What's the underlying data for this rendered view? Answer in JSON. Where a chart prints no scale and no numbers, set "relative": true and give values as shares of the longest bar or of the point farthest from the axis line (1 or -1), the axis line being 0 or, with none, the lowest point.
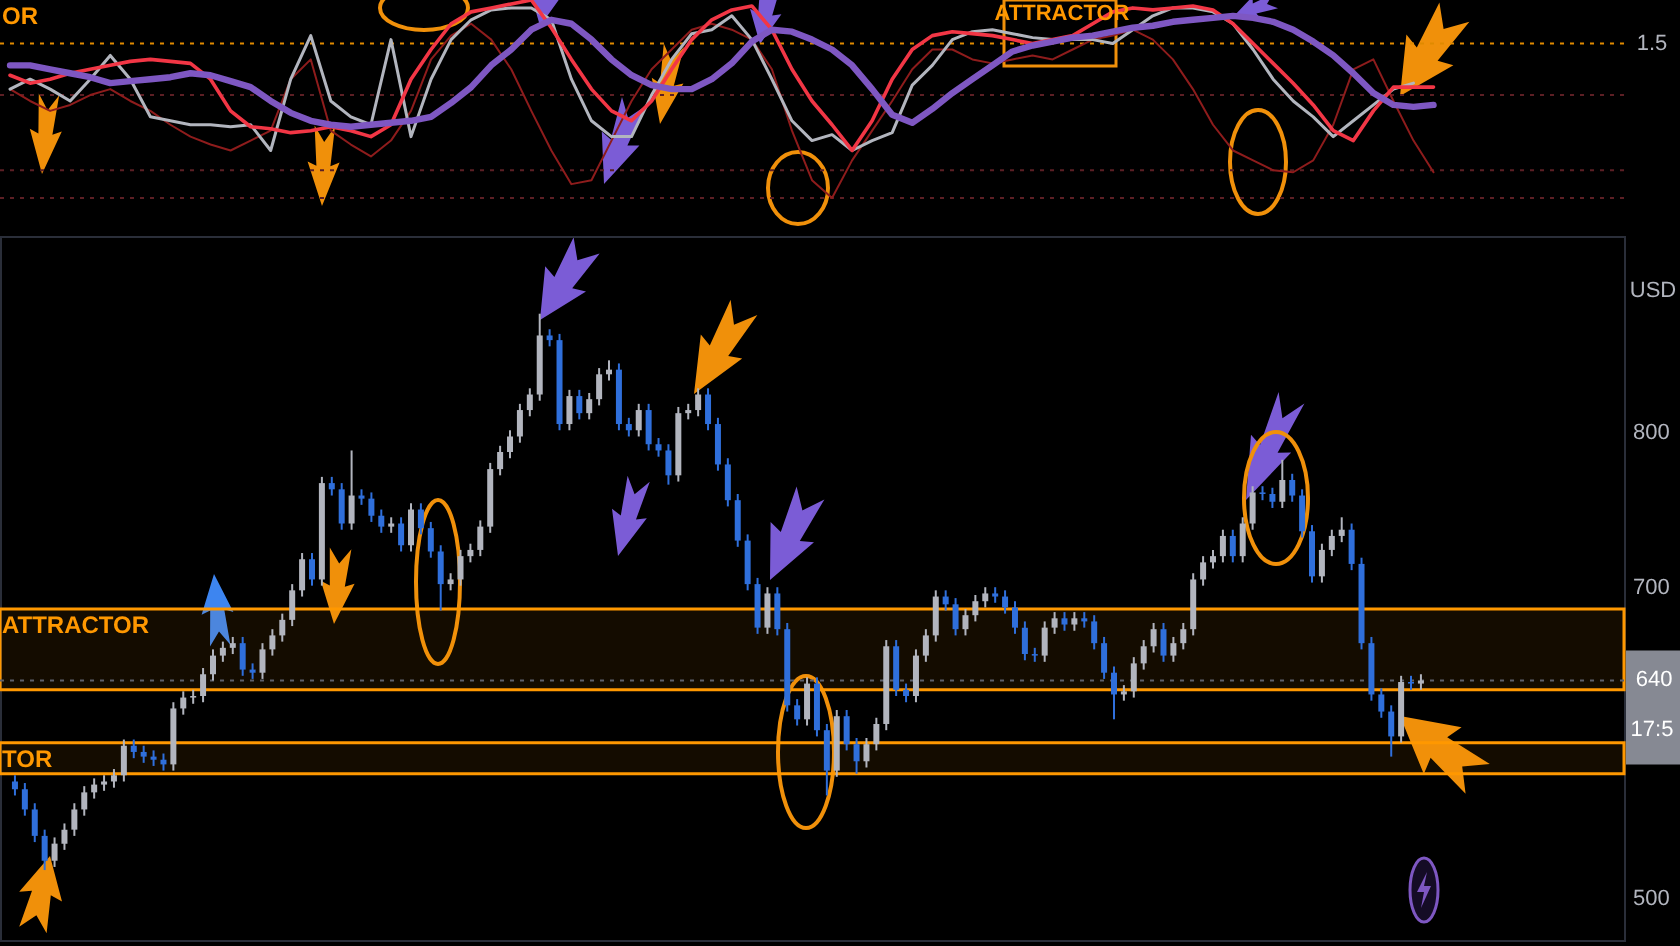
{
  "chart_data": [
    {
      "type": "line",
      "relative": true,
      "categories": [
        null,
        null,
        null,
        null,
        null,
        null,
        null,
        null,
        null,
        null,
        null,
        null,
        null,
        null,
        null,
        null,
        null,
        null,
        null,
        null,
        null,
        null,
        null,
        null,
        null,
        null,
        null,
        null,
        null,
        null,
        null,
        null,
        null,
        null,
        null,
        null,
        null,
        null,
        null,
        null,
        null,
        null,
        null,
        null,
        null,
        null,
        null,
        null,
        null,
        null,
        null,
        null,
        null,
        null,
        null,
        null,
        null,
        null,
        null,
        null,
        null,
        null,
        null,
        null,
        null,
        null,
        null,
        null,
        null,
        null,
        null,
        null,
        null,
        null,
        null,
        null,
        null,
        null,
        null,
        null,
        null
      ],
      "series": [
        {
          "color": "#8e1c1c",
          "values": [
            0.55,
            0.49,
            0.44,
            0.47,
            0.52,
            0.55,
            0.49,
            0.44,
            0.37,
            0.31,
            0.27,
            0.24,
            0.29,
            0.34,
            0.6,
            0.7,
            0.34,
            0.27,
            0.21,
            0.29,
            0.44,
            0.7,
            0.82,
            0.88,
            0.8,
            0.65,
            0.44,
            0.24,
            0.07,
            0.09,
            0.29,
            0.49,
            0.65,
            0.75,
            0.85,
            0.88,
            0.85,
            0.8,
            0.65,
            0.34,
            0.09,
            0,
            0.19,
            0.34,
            0.49,
            0.65,
            0.75,
            0.75,
            0.7,
            0.68,
            0.7,
            0.72,
            0.7,
            0.75,
            0.8,
            0.82,
            0.85,
            0.8,
            0.7,
            0.55,
            0.37,
            0.24,
            0.19,
            0.14,
            0.13,
            0.19,
            0.37,
            0.65,
            0.7,
            0.49,
            0.29,
            0.13,
            null,
            null,
            null,
            null,
            null,
            null,
            null,
            null,
            null
          ]
        },
        {
          "color": "#b2b5be",
          "values": [
            0.55,
            0.6,
            0.55,
            0.49,
            0.6,
            0.72,
            0.6,
            0.41,
            0.39,
            0.37,
            0.37,
            0.36,
            0.37,
            0.24,
            0.6,
            0.82,
            0.49,
            0.41,
            0.37,
            0.8,
            0.31,
            0.6,
            0.8,
            0.9,
            0.95,
            0.96,
            0.96,
            0.9,
            0.6,
            0.39,
            0.31,
            0.31,
            0.52,
            0.7,
            0.83,
            0.85,
            0.92,
            0.8,
            0.6,
            0.39,
            0.29,
            0.32,
            0.24,
            0.29,
            0.33,
            0.57,
            0.67,
            0.8,
            0.84,
            0.85,
            0.83,
            0.81,
            0.8,
            0.8,
            0.8,
            0.78,
            0.85,
            0.92,
            0.96,
            0.96,
            0.94,
            0.88,
            0.75,
            0.6,
            0.49,
            0.41,
            0.31,
            0.39,
            0.47,
            0.55,
            0.58,
            null,
            null,
            null,
            null,
            null,
            null,
            null,
            null,
            null,
            null
          ]
        },
        {
          "color": "#f23645",
          "values": [
            0.62,
            0.58,
            0.6,
            0.63,
            0.65,
            0.67,
            0.69,
            0.7,
            0.69,
            0.68,
            0.6,
            0.44,
            0.36,
            0.35,
            0.33,
            0.34,
            0.36,
            0.34,
            0.31,
            0.37,
            0.6,
            0.75,
            0.88,
            0.94,
            0.96,
            0.98,
            1,
            0.86,
            0.7,
            0.55,
            0.44,
            0.39,
            0.49,
            0.65,
            0.8,
            0.9,
            0.95,
            0.97,
            0.85,
            0.65,
            0.49,
            0.37,
            0.24,
            0.39,
            0.6,
            0.75,
            0.82,
            0.84,
            0.83,
            0.82,
            0.8,
            0.78,
            0.8,
            0.82,
            0.88,
            0.94,
            0.96,
            0.95,
            0.96,
            0.97,
            0.95,
            0.88,
            0.78,
            0.68,
            0.58,
            0.47,
            0.34,
            0.29,
            0.44,
            0.56,
            0.56,
            0.56,
            null,
            null,
            null,
            null,
            null,
            null,
            null,
            null,
            null
          ]
        },
        {
          "color": "#7e57c2",
          "values": [
            0.67,
            0.67,
            0.65,
            0.63,
            0.61,
            0.58,
            0.59,
            0.6,
            0.61,
            0.63,
            0.62,
            0.59,
            0.56,
            0.49,
            0.43,
            0.39,
            0.37,
            0.36,
            0.37,
            0.38,
            0.39,
            0.41,
            0.48,
            0.56,
            0.67,
            0.75,
            0.85,
            0.9,
            0.88,
            0.8,
            0.7,
            0.62,
            0.57,
            0.55,
            0.55,
            0.6,
            0.68,
            0.79,
            0.85,
            0.84,
            0.8,
            0.75,
            0.67,
            0.55,
            0.42,
            0.38,
            0.45,
            0.53,
            0.6,
            0.67,
            0.74,
            0.77,
            0.79,
            0.81,
            0.82,
            0.84,
            0.86,
            0.87,
            0.89,
            0.9,
            0.91,
            0.92,
            0.91,
            0.89,
            0.85,
            0.79,
            0.72,
            0.63,
            0.53,
            0.47,
            0.46,
            0.47,
            null,
            null,
            null,
            null,
            null,
            null,
            null,
            null,
            null
          ]
        }
      ],
      "ref_lines": [
        {
          "axis": "y",
          "value": 0.78,
          "color": "#e08a00",
          "line_style": "dotted"
        },
        {
          "axis": "y",
          "value": 0.52,
          "color": "#5c1f24",
          "line_style": "dotted"
        },
        {
          "axis": "y",
          "value": 0.14,
          "color": "#5c1f24",
          "line_style": "dotted"
        },
        {
          "axis": "y",
          "value": 0,
          "color": "#5c1f24",
          "line_style": "dotted"
        }
      ],
      "annotations": [
        "OR",
        "ATTRACTOR",
        "1.5"
      ]
    },
    {
      "type": "candlestick",
      "ylabel": "USD",
      "tick_labels": "y",
      "ylim": [
        473,
        926
      ],
      "yticks": [
        500,
        700,
        800
      ],
      "categories": [
        null,
        null,
        null,
        null,
        null,
        null,
        null,
        null,
        null,
        null,
        null,
        null,
        null,
        null,
        null,
        null,
        null,
        null,
        null,
        null,
        null,
        null,
        null,
        null,
        null,
        null,
        null,
        null,
        null,
        null,
        null,
        null,
        null,
        null,
        null,
        null,
        null,
        null,
        null,
        null,
        null,
        null,
        null,
        null,
        null,
        null,
        null,
        null,
        null,
        null,
        null,
        null,
        null,
        null,
        null,
        null,
        null,
        null,
        null,
        null,
        null,
        null,
        null,
        null,
        null,
        null,
        null,
        null,
        null,
        null,
        null,
        null,
        null,
        null,
        null,
        null,
        null,
        null,
        null,
        null,
        null,
        null,
        null,
        null,
        null,
        null,
        null,
        null,
        null,
        null,
        null,
        null,
        null,
        null,
        null,
        null,
        null,
        null,
        null,
        null,
        null,
        null,
        null,
        null,
        null,
        null,
        null,
        null,
        null,
        null,
        null,
        null,
        null,
        null,
        null,
        null,
        null,
        null,
        null,
        null,
        null,
        null,
        null,
        null,
        null,
        null,
        null,
        null,
        null,
        null,
        null,
        null,
        null,
        null,
        null,
        null,
        null,
        null,
        null,
        null,
        null,
        null,
        null,
        null,
        null,
        null,
        null,
        null,
        null,
        null,
        null,
        null,
        null,
        null,
        null,
        null,
        null,
        null,
        null,
        null,
        null,
        null
      ],
      "ohlc": [
        [
          575,
          579,
          566,
          570
        ],
        [
          570,
          574,
          553,
          557
        ],
        [
          557,
          561,
          536,
          540
        ],
        [
          540,
          544,
          518,
          524
        ],
        [
          524,
          539,
          520,
          535
        ],
        [
          535,
          548,
          531,
          544
        ],
        [
          544,
          561,
          540,
          557
        ],
        [
          557,
          572,
          553,
          568
        ],
        [
          568,
          577,
          564,
          573
        ],
        [
          573,
          579,
          569,
          575
        ],
        [
          575,
          583,
          571,
          579
        ],
        [
          579,
          602,
          575,
          598
        ],
        [
          598,
          602,
          590,
          594
        ],
        [
          594,
          598,
          587,
          591
        ],
        [
          591,
          595,
          585,
          589
        ],
        [
          589,
          593,
          582,
          586
        ],
        [
          586,
          626,
          582,
          622
        ],
        [
          622,
          633,
          618,
          629
        ],
        [
          629,
          634,
          625,
          630
        ],
        [
          630,
          648,
          626,
          644
        ],
        [
          644,
          660,
          640,
          656
        ],
        [
          656,
          665,
          652,
          661
        ],
        [
          661,
          668,
          657,
          664
        ],
        [
          664,
          668,
          643,
          647
        ],
        [
          647,
          651,
          641,
          645
        ],
        [
          645,
          664,
          641,
          660
        ],
        [
          660,
          673,
          656,
          669
        ],
        [
          669,
          683,
          665,
          679
        ],
        [
          679,
          702,
          675,
          698
        ],
        [
          698,
          722,
          694,
          718
        ],
        [
          718,
          722,
          701,
          705
        ],
        [
          705,
          771,
          701,
          767
        ],
        [
          767,
          771,
          759,
          763
        ],
        [
          763,
          767,
          737,
          741
        ],
        [
          741,
          788,
          737,
          759
        ],
        [
          759,
          763,
          753,
          757
        ],
        [
          757,
          761,
          742,
          746
        ],
        [
          746,
          750,
          735,
          739
        ],
        [
          739,
          745,
          735,
          741
        ],
        [
          741,
          745,
          723,
          727
        ],
        [
          727,
          754,
          723,
          750
        ],
        [
          750,
          754,
          734,
          738
        ],
        [
          738,
          742,
          719,
          723
        ],
        [
          723,
          727,
          685,
          702
        ],
        [
          702,
          709,
          698,
          705
        ],
        [
          705,
          724,
          701,
          720
        ],
        [
          720,
          728,
          716,
          724
        ],
        [
          724,
          743,
          720,
          739
        ],
        [
          739,
          780,
          735,
          776
        ],
        [
          776,
          791,
          772,
          787
        ],
        [
          787,
          801,
          783,
          797
        ],
        [
          797,
          818,
          793,
          814
        ],
        [
          814,
          828,
          810,
          824
        ],
        [
          824,
          876,
          820,
          862
        ],
        [
          862,
          866,
          855,
          859
        ],
        [
          859,
          863,
          801,
          805
        ],
        [
          805,
          827,
          801,
          823
        ],
        [
          823,
          827,
          808,
          812
        ],
        [
          812,
          825,
          808,
          821
        ],
        [
          821,
          841,
          817,
          837
        ],
        [
          837,
          846,
          833,
          840
        ],
        [
          840,
          844,
          801,
          805
        ],
        [
          805,
          809,
          797,
          801
        ],
        [
          801,
          818,
          797,
          814
        ],
        [
          814,
          818,
          788,
          792
        ],
        [
          792,
          796,
          784,
          788
        ],
        [
          788,
          792,
          766,
          772
        ],
        [
          772,
          816,
          768,
          812
        ],
        [
          812,
          818,
          808,
          814
        ],
        [
          814,
          828,
          810,
          824
        ],
        [
          824,
          828,
          801,
          805
        ],
        [
          805,
          809,
          775,
          779
        ],
        [
          779,
          783,
          752,
          756
        ],
        [
          756,
          760,
          726,
          730
        ],
        [
          730,
          734,
          698,
          702
        ],
        [
          702,
          706,
          670,
          674
        ],
        [
          674,
          700,
          670,
          696
        ],
        [
          696,
          700,
          669,
          673
        ],
        [
          673,
          677,
          620,
          624
        ],
        [
          624,
          628,
          611,
          615
        ],
        [
          615,
          642,
          611,
          638
        ],
        [
          638,
          642,
          604,
          608
        ],
        [
          608,
          612,
          566,
          582
        ],
        [
          582,
          621,
          578,
          617
        ],
        [
          617,
          621,
          595,
          599
        ],
        [
          599,
          603,
          580,
          588
        ],
        [
          588,
          603,
          584,
          599
        ],
        [
          599,
          616,
          595,
          612
        ],
        [
          612,
          666,
          608,
          662
        ],
        [
          662,
          666,
          630,
          634
        ],
        [
          634,
          638,
          626,
          630
        ],
        [
          630,
          660,
          626,
          656
        ],
        [
          656,
          673,
          652,
          669
        ],
        [
          669,
          698,
          665,
          694
        ],
        [
          694,
          698,
          685,
          689
        ],
        [
          689,
          693,
          669,
          673
        ],
        [
          673,
          686,
          669,
          682
        ],
        [
          682,
          695,
          678,
          691
        ],
        [
          691,
          700,
          687,
          696
        ],
        [
          696,
          700,
          690,
          694
        ],
        [
          694,
          698,
          683,
          687
        ],
        [
          687,
          691,
          670,
          674
        ],
        [
          674,
          678,
          653,
          657
        ],
        [
          657,
          661,
          652,
          656
        ],
        [
          656,
          678,
          652,
          674
        ],
        [
          674,
          684,
          670,
          680
        ],
        [
          680,
          684,
          672,
          676
        ],
        [
          676,
          684,
          672,
          680
        ],
        [
          680,
          684,
          674,
          678
        ],
        [
          678,
          682,
          660,
          664
        ],
        [
          664,
          668,
          641,
          645
        ],
        [
          645,
          649,
          615,
          631
        ],
        [
          631,
          637,
          627,
          633
        ],
        [
          633,
          655,
          629,
          651
        ],
        [
          651,
          666,
          647,
          662
        ],
        [
          662,
          677,
          658,
          673
        ],
        [
          673,
          677,
          652,
          656
        ],
        [
          656,
          668,
          652,
          664
        ],
        [
          664,
          677,
          660,
          673
        ],
        [
          673,
          709,
          669,
          705
        ],
        [
          705,
          720,
          701,
          716
        ],
        [
          716,
          724,
          712,
          720
        ],
        [
          720,
          737,
          716,
          733
        ],
        [
          733,
          737,
          716,
          720
        ],
        [
          720,
          745,
          716,
          741
        ],
        [
          741,
          765,
          737,
          761
        ],
        [
          761,
          765,
          756,
          760
        ],
        [
          760,
          764,
          751,
          755
        ],
        [
          755,
          782,
          751,
          769
        ],
        [
          769,
          773,
          755,
          759
        ],
        [
          759,
          763,
          732,
          736
        ],
        [
          736,
          740,
          703,
          707
        ],
        [
          707,
          728,
          703,
          724
        ],
        [
          724,
          737,
          720,
          733
        ],
        [
          733,
          745,
          729,
          737
        ],
        [
          737,
          741,
          711,
          715
        ],
        [
          715,
          719,
          660,
          664
        ],
        [
          664,
          668,
          627,
          631
        ],
        [
          631,
          635,
          616,
          620
        ],
        [
          620,
          624,
          591,
          604
        ],
        [
          604,
          643,
          600,
          639
        ],
        [
          639,
          643,
          634,
          638
        ],
        [
          638,
          644,
          634,
          640
        ],
        null,
        null,
        null,
        null,
        null,
        null,
        null,
        null,
        null,
        null,
        null,
        null,
        null,
        null,
        null,
        null,
        null,
        null,
        null
      ],
      "colors": [
        "#2f6fdb",
        "#2f6fdb",
        "#2f6fdb",
        "#2f6fdb",
        "#b2b5be",
        "#b2b5be",
        "#b2b5be",
        "#b2b5be",
        "#b2b5be",
        "#b2b5be",
        "#b2b5be",
        "#b2b5be",
        "#2f6fdb",
        "#2f6fdb",
        "#2f6fdb",
        "#2f6fdb",
        "#b2b5be",
        "#b2b5be",
        "#b2b5be",
        "#b2b5be",
        "#b2b5be",
        "#b2b5be",
        "#b2b5be",
        "#2f6fdb",
        "#2f6fdb",
        "#b2b5be",
        "#b2b5be",
        "#b2b5be",
        "#b2b5be",
        "#b2b5be",
        "#2f6fdb",
        "#b2b5be",
        "#2f6fdb",
        "#2f6fdb",
        "#b2b5be",
        "#2f6fdb",
        "#2f6fdb",
        "#2f6fdb",
        "#b2b5be",
        "#2f6fdb",
        "#b2b5be",
        "#2f6fdb",
        "#2f6fdb",
        "#2f6fdb",
        "#b2b5be",
        "#b2b5be",
        "#b2b5be",
        "#b2b5be",
        "#b2b5be",
        "#b2b5be",
        "#b2b5be",
        "#b2b5be",
        "#b2b5be",
        "#b2b5be",
        "#2f6fdb",
        "#2f6fdb",
        "#b2b5be",
        "#2f6fdb",
        "#b2b5be",
        "#b2b5be",
        "#b2b5be",
        "#2f6fdb",
        "#2f6fdb",
        "#b2b5be",
        "#2f6fdb",
        "#2f6fdb",
        "#2f6fdb",
        "#b2b5be",
        "#b2b5be",
        "#b2b5be",
        "#2f6fdb",
        "#2f6fdb",
        "#2f6fdb",
        "#2f6fdb",
        "#2f6fdb",
        "#2f6fdb",
        "#b2b5be",
        "#2f6fdb",
        "#2f6fdb",
        "#2f6fdb",
        "#b2b5be",
        "#2f6fdb",
        "#2f6fdb",
        "#b2b5be",
        "#2f6fdb",
        "#2f6fdb",
        "#b2b5be",
        "#b2b5be",
        "#b2b5be",
        "#2f6fdb",
        "#2f6fdb",
        "#b2b5be",
        "#b2b5be",
        "#b2b5be",
        "#2f6fdb",
        "#2f6fdb",
        "#b2b5be",
        "#b2b5be",
        "#b2b5be",
        "#2f6fdb",
        "#2f6fdb",
        "#2f6fdb",
        "#2f6fdb",
        "#2f6fdb",
        "#b2b5be",
        "#b2b5be",
        "#2f6fdb",
        "#b2b5be",
        "#2f6fdb",
        "#2f6fdb",
        "#2f6fdb",
        "#2f6fdb",
        "#b2b5be",
        "#b2b5be",
        "#b2b5be",
        "#b2b5be",
        "#2f6fdb",
        "#b2b5be",
        "#b2b5be",
        "#b2b5be",
        "#b2b5be",
        "#b2b5be",
        "#b2b5be",
        "#2f6fdb",
        "#b2b5be",
        "#b2b5be",
        "#2f6fdb",
        "#2f6fdb",
        "#b2b5be",
        "#2f6fdb",
        "#2f6fdb",
        "#2f6fdb",
        "#b2b5be",
        "#b2b5be",
        "#b2b5be",
        "#2f6fdb",
        "#2f6fdb",
        "#2f6fdb",
        "#2f6fdb",
        "#2f6fdb",
        "#b2b5be",
        "#2f6fdb",
        "#b2b5be",
        null,
        null,
        null,
        null,
        null,
        null,
        null,
        null,
        null,
        null,
        null,
        null,
        null,
        null,
        null,
        null,
        null,
        null,
        null
      ],
      "bands": [
        {
          "axis": "y",
          "from": 580,
          "to": 600,
          "label": "TOR",
          "color": "#ff9800"
        },
        {
          "axis": "y",
          "from": 634,
          "to": 686,
          "label": "ATTRACTOR",
          "color": "#ff9800"
        }
      ],
      "ref_lines": [
        {
          "axis": "y",
          "value": 640,
          "label": "640",
          "color": "#5d606b",
          "line_style": "dotted"
        }
      ],
      "annotations": [
        "17:5"
      ]
    }
  ]
}
